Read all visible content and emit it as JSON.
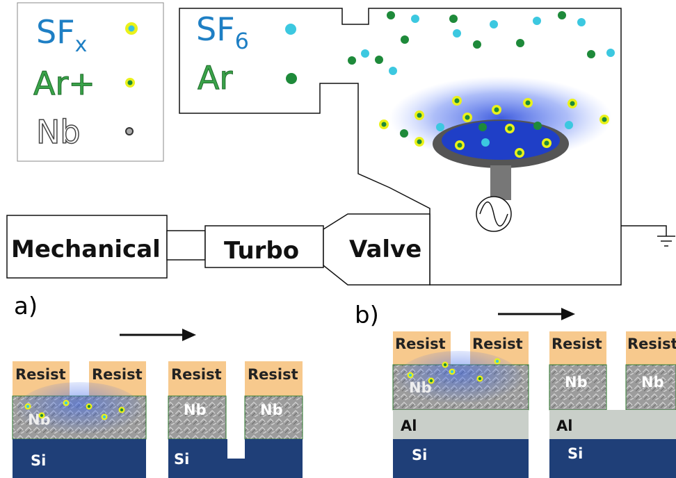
{
  "legend": {
    "items": [
      {
        "label": "SF",
        "sub": "x"
      },
      {
        "label": "Ar+"
      },
      {
        "label": "Nb"
      }
    ]
  },
  "chamber": {
    "gases": [
      {
        "label": "SF",
        "sub": "6"
      },
      {
        "label": "Ar"
      }
    ]
  },
  "pumps": [
    "Mechanical",
    "Turbo",
    "Valve"
  ],
  "panels": [
    {
      "label": "a)",
      "before": {
        "resist": [
          "Resist",
          "Resist"
        ],
        "nb": "Nb",
        "si": "Si"
      },
      "after": {
        "resist": [
          "Resist",
          "Resist"
        ],
        "nb": [
          "Nb",
          "Nb"
        ],
        "si": "Si"
      }
    },
    {
      "label": "b)",
      "before": {
        "resist": [
          "Resist",
          "Resist"
        ],
        "nb": "Nb",
        "al": "Al",
        "si": "Si"
      },
      "after": {
        "resist": [
          "Resist",
          "Resist"
        ],
        "nb": [
          "Nb",
          "Nb"
        ],
        "al": "Al",
        "si": "Si"
      }
    }
  ]
}
